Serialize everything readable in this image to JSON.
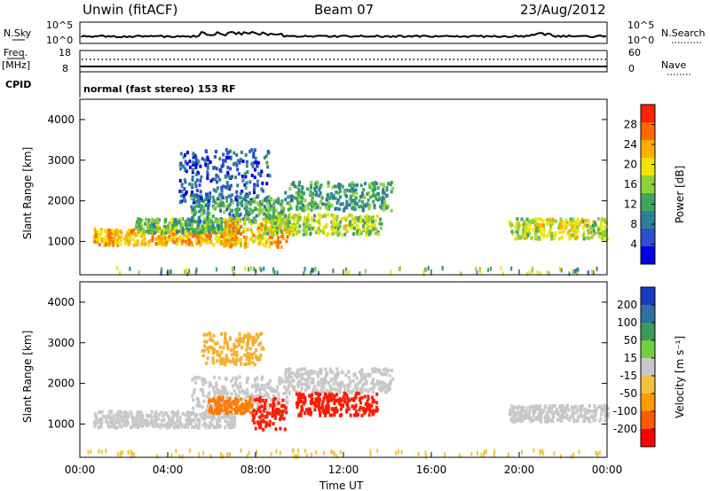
{
  "header": {
    "station": "Unwin (fitACF)",
    "beam": "Beam 07",
    "date": "23/Aug/2012"
  },
  "top_panels": {
    "nsky_label": "N.Sky",
    "nsearch_label": "N.Search",
    "noise_ticks_left": [
      "10^5",
      "10^0"
    ],
    "noise_ticks_right": [
      "10^5",
      "10^0"
    ],
    "freq_label_1": "Freq.",
    "freq_label_2": "[MHz]",
    "freq_ticks": [
      "18",
      "8"
    ],
    "nave_label": "Nave",
    "nave_ticks": [
      "60",
      "0"
    ],
    "cpid_label": "CPID",
    "cpid_text": "normal (fast stereo) 153 RF"
  },
  "chart_data": [
    {
      "type": "heatmap",
      "name": "power",
      "xlabel": "",
      "ylabel": "Slant Range [km]",
      "x_ticks": [
        "00:00",
        "04:00",
        "08:00",
        "12:00",
        "16:00",
        "20:00",
        "00:00"
      ],
      "xlim_hours": [
        0,
        24
      ],
      "y_ticks": [
        "1000",
        "2000",
        "3000",
        "4000"
      ],
      "ylim_km": [
        180,
        4500
      ],
      "colorbar": {
        "label": "Power [dB]",
        "ticks": [
          "4",
          "8",
          "12",
          "16",
          "20",
          "24",
          "28"
        ],
        "range": [
          0,
          32
        ],
        "colors": [
          "#0000e6",
          "#2d4fd0",
          "#2f7f9a",
          "#3da55f",
          "#8fd13a",
          "#f0e400",
          "#ffae00",
          "#ff6a00",
          "#ff2000"
        ]
      },
      "regions": [
        {
          "h0": 0.6,
          "h1": 7.0,
          "r0": 950,
          "r1": 1350,
          "level": 23
        },
        {
          "h0": 2.5,
          "h1": 7.2,
          "r0": 1250,
          "r1": 1600,
          "level": 14
        },
        {
          "h0": 5.0,
          "h1": 7.6,
          "r0": 1500,
          "r1": 2200,
          "level": 11
        },
        {
          "h0": 4.4,
          "h1": 8.6,
          "r0": 2000,
          "r1": 3300,
          "level": 6
        },
        {
          "h0": 6.5,
          "h1": 9.4,
          "r0": 900,
          "r1": 1600,
          "level": 22
        },
        {
          "h0": 7.5,
          "h1": 9.4,
          "r0": 1500,
          "r1": 2100,
          "level": 13
        },
        {
          "h0": 8.3,
          "h1": 13.7,
          "r0": 1200,
          "r1": 1700,
          "level": 17
        },
        {
          "h0": 9.3,
          "h1": 14.2,
          "r0": 1800,
          "r1": 2500,
          "level": 12
        },
        {
          "h0": 19.5,
          "h1": 24.0,
          "r0": 1100,
          "r1": 1600,
          "level": 18
        }
      ]
    },
    {
      "type": "heatmap",
      "name": "velocity",
      "xlabel": "Time UT",
      "ylabel": "Slant Range [km]",
      "x_ticks": [
        "00:00",
        "04:00",
        "08:00",
        "12:00",
        "16:00",
        "20:00",
        "00:00"
      ],
      "xlim_hours": [
        0,
        24
      ],
      "y_ticks": [
        "1000",
        "2000",
        "3000",
        "4000"
      ],
      "ylim_km": [
        180,
        4500
      ],
      "colorbar": {
        "label": "Velocity [m s⁻¹]",
        "ticks": [
          "200",
          "100",
          "50",
          "15",
          "-15",
          "-50",
          "-100",
          "-200"
        ],
        "colors": [
          "#1a3cc0",
          "#2f70a0",
          "#3a9a5a",
          "#6ed040",
          "#c8c8c8",
          "#f5c040",
          "#ff9a00",
          "#ff5a00",
          "#ff0000"
        ]
      },
      "regions": [
        {
          "h0": 0.6,
          "h1": 7.0,
          "r0": 950,
          "r1": 1350,
          "level": "ground"
        },
        {
          "h0": 5.0,
          "h1": 9.4,
          "r0": 1300,
          "r1": 2200,
          "level": "ground"
        },
        {
          "h0": 9.3,
          "h1": 14.2,
          "r0": 1800,
          "r1": 2400,
          "level": "ground"
        },
        {
          "h0": 7.8,
          "h1": 9.4,
          "r0": 900,
          "r1": 1700,
          "level": -200
        },
        {
          "h0": 9.8,
          "h1": 13.5,
          "r0": 1250,
          "r1": 1800,
          "level": -200
        },
        {
          "h0": 5.8,
          "h1": 7.8,
          "r0": 1300,
          "r1": 1700,
          "level": -100
        },
        {
          "h0": 5.5,
          "h1": 8.3,
          "r0": 2500,
          "r1": 3300,
          "level": -50
        },
        {
          "h0": 19.5,
          "h1": 24.0,
          "r0": 1100,
          "r1": 1500,
          "level": "ground"
        }
      ]
    }
  ]
}
